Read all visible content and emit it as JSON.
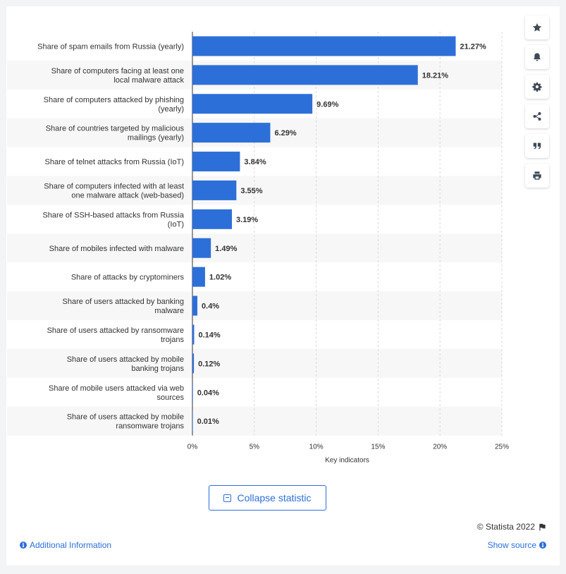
{
  "chart_data": {
    "type": "bar",
    "orientation": "horizontal",
    "categories": [
      "Share of spam emails from Russia (yearly)",
      "Share of computers facing at least one local malware attack",
      "Share of computers attacked by phishing (yearly)",
      "Share of countries targeted by malicious mailings (yearly)",
      "Share of telnet attacks from Russia (IoT)",
      "Share of computers infected with at least one malware attack (web-based)",
      "Share of SSH-based attacks from Russia (IoT)",
      "Share of mobiles infected with malware",
      "Share of attacks by cryptominers",
      "Share of users attacked by banking malware",
      "Share of users attacked by ransomware trojans",
      "Share of users attacked by mobile banking trojans",
      "Share of mobile users attacked via web sources",
      "Share of users attacked by mobile ransomware trojans"
    ],
    "category_lines": [
      [
        "Share of spam emails from Russia (yearly)"
      ],
      [
        "Share of computers facing at least one",
        "local malware attack"
      ],
      [
        "Share of computers attacked by phishing",
        "(yearly)"
      ],
      [
        "Share of countries targeted by malicious",
        "mailings (yearly)"
      ],
      [
        "Share of telnet attacks from Russia (IoT)"
      ],
      [
        "Share of computers infected with at least",
        "one malware attack (web-based)"
      ],
      [
        "Share of SSH-based attacks from Russia",
        "(IoT)"
      ],
      [
        "Share of mobiles infected with malware"
      ],
      [
        "Share of attacks by cryptominers"
      ],
      [
        "Share of users attacked by banking",
        "malware"
      ],
      [
        "Share of users attacked by ransomware",
        "trojans"
      ],
      [
        "Share of users attacked by mobile",
        "banking trojans"
      ],
      [
        "Share of mobile users attacked via web",
        "sources"
      ],
      [
        "Share of users attacked by mobile",
        "ransomware trojans"
      ]
    ],
    "values": [
      21.27,
      18.21,
      9.69,
      6.29,
      3.84,
      3.55,
      3.19,
      1.49,
      1.02,
      0.4,
      0.14,
      0.12,
      0.04,
      0.01
    ],
    "value_labels": [
      "21.27%",
      "18.21%",
      "9.69%",
      "6.29%",
      "3.84%",
      "3.55%",
      "3.19%",
      "1.49%",
      "1.02%",
      "0.4%",
      "0.14%",
      "0.12%",
      "0.04%",
      "0.01%"
    ],
    "xlim": [
      0,
      25
    ],
    "xticks": [
      0,
      5,
      10,
      15,
      20,
      25
    ],
    "xtick_labels": [
      "0%",
      "5%",
      "10%",
      "15%",
      "20%",
      "25%"
    ],
    "xlabel": "Key indicators",
    "ylabel": "",
    "title": "",
    "bar_color": "#2d6fd9",
    "stripe_color": "#f7f7f7",
    "grid": true
  },
  "toolbar": {
    "icons": [
      "star-icon",
      "bell-icon",
      "gear-icon",
      "share-icon",
      "quote-icon",
      "print-icon"
    ]
  },
  "footer": {
    "collapse_label": "Collapse statistic",
    "copyright": "© Statista 2022",
    "additional_info": "Additional Information",
    "show_source": "Show source"
  },
  "colors": {
    "accent": "#2d6fd9",
    "text": "#333333",
    "background": "#f2f4f6"
  }
}
